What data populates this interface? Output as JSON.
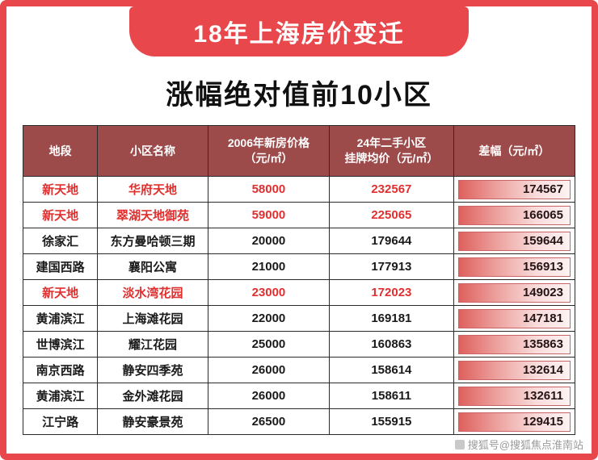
{
  "banner": {
    "title": "18年上海房价变迁"
  },
  "subtitle": "涨幅绝对值前10小区",
  "colors": {
    "border_red": "#e8474b",
    "header_bg": "#9d4a4a",
    "highlight_red": "#e02f2f",
    "bar_red": "#dd605d"
  },
  "table": {
    "headers": [
      "地段",
      "小区名称",
      "2006年新房价格\n（元/㎡）",
      "24年二手小区\n挂牌均价（元/㎡）",
      "差幅（元/㎡）"
    ],
    "rows": [
      {
        "district": "新天地",
        "name": "华府天地",
        "price2006": "58000",
        "price24": "232567",
        "diff": "174567",
        "highlight": true
      },
      {
        "district": "新天地",
        "name": "翠湖天地御苑",
        "price2006": "59000",
        "price24": "225065",
        "diff": "166065",
        "highlight": true
      },
      {
        "district": "徐家汇",
        "name": "东方曼哈顿三期",
        "price2006": "20000",
        "price24": "179644",
        "diff": "159644",
        "highlight": false
      },
      {
        "district": "建国西路",
        "name": "襄阳公寓",
        "price2006": "21000",
        "price24": "177913",
        "diff": "156913",
        "highlight": false
      },
      {
        "district": "新天地",
        "name": "淡水湾花园",
        "price2006": "23000",
        "price24": "172023",
        "diff": "149023",
        "highlight": true
      },
      {
        "district": "黄浦滨江",
        "name": "上海滩花园",
        "price2006": "22000",
        "price24": "169181",
        "diff": "147181",
        "highlight": false
      },
      {
        "district": "世博滨江",
        "name": "耀江花园",
        "price2006": "25000",
        "price24": "160863",
        "diff": "135863",
        "highlight": false
      },
      {
        "district": "南京西路",
        "name": "静安四季苑",
        "price2006": "26000",
        "price24": "158614",
        "diff": "132614",
        "highlight": false
      },
      {
        "district": "黄浦滨江",
        "name": "金外滩花园",
        "price2006": "26000",
        "price24": "158611",
        "diff": "132611",
        "highlight": false
      },
      {
        "district": "江宁路",
        "name": "静安豪景苑",
        "price2006": "26500",
        "price24": "155915",
        "diff": "129415",
        "highlight": false
      }
    ]
  },
  "watermark": "搜狐号@搜狐焦点淮南站"
}
